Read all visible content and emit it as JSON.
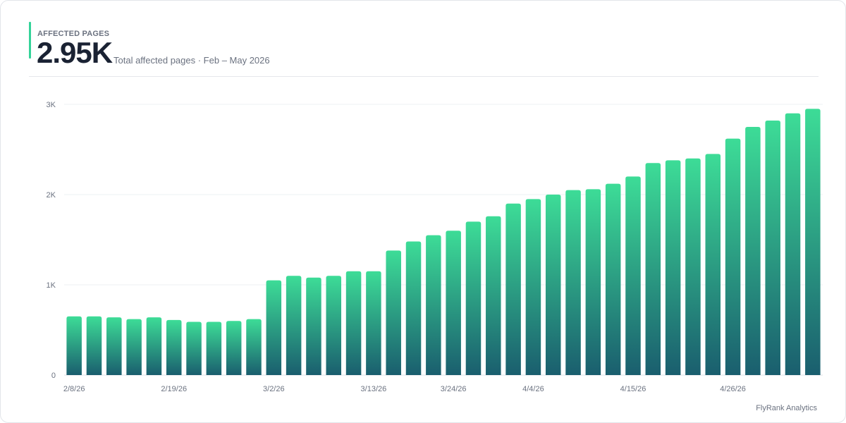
{
  "kpi": {
    "label": "AFFECTED PAGES",
    "value": "2.95K",
    "subtitle": "Total affected pages · Feb – May 2026"
  },
  "footer": {
    "brand": "FlyRank Analytics"
  },
  "colors": {
    "bar_top": "#3ddc97",
    "bar_bottom": "#1a5e6e",
    "accent": "#34d399",
    "grid": "#eef0f3",
    "axis_text": "#6b7280"
  },
  "chart_data": {
    "type": "bar",
    "title": "",
    "xlabel": "",
    "ylabel": "",
    "ylim": [
      0,
      3000
    ],
    "y_ticks": [
      {
        "value": 0,
        "label": "0"
      },
      {
        "value": 1000,
        "label": "1K"
      },
      {
        "value": 2000,
        "label": "2K"
      },
      {
        "value": 3000,
        "label": "3K"
      }
    ],
    "x_tick_labels": [
      {
        "index": 0,
        "label": "2/8/26"
      },
      {
        "index": 5,
        "label": "2/19/26"
      },
      {
        "index": 10,
        "label": "3/2/26"
      },
      {
        "index": 15,
        "label": "3/13/26"
      },
      {
        "index": 19,
        "label": "3/24/26"
      },
      {
        "index": 23,
        "label": "4/4/26"
      },
      {
        "index": 28,
        "label": "4/15/26"
      },
      {
        "index": 33,
        "label": "4/26/26"
      }
    ],
    "grid": true,
    "values": [
      650,
      650,
      640,
      620,
      640,
      610,
      590,
      590,
      600,
      620,
      1050,
      1100,
      1080,
      1100,
      1150,
      1150,
      1380,
      1480,
      1550,
      1600,
      1700,
      1760,
      1900,
      1950,
      2000,
      2050,
      2060,
      2120,
      2200,
      2350,
      2380,
      2400,
      2450,
      2620,
      2750,
      2820,
      2900,
      2950
    ]
  }
}
